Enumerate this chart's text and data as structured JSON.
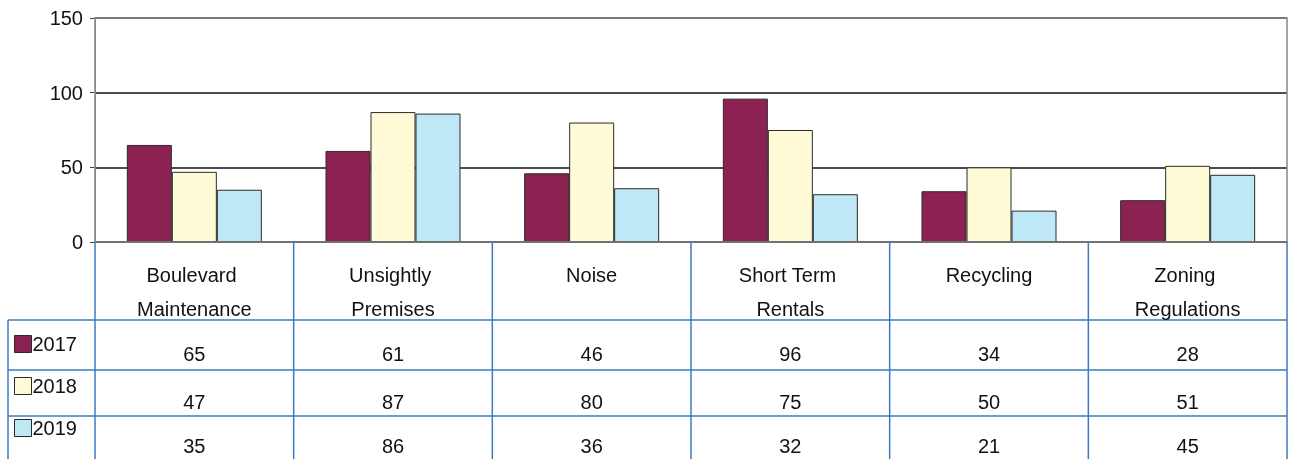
{
  "chart_data": {
    "type": "bar",
    "categories": [
      "Boulevard Maintenance",
      "Unsightly Premises",
      "Noise",
      "Short Term Rentals",
      "Recycling",
      "Zoning Regulations"
    ],
    "series": [
      {
        "name": "2017",
        "color": "#8b2252",
        "values": [
          65,
          61,
          46,
          96,
          34,
          28
        ]
      },
      {
        "name": "2018",
        "color": "#fffbd6",
        "values": [
          47,
          87,
          80,
          75,
          50,
          51
        ]
      },
      {
        "name": "2019",
        "color": "#bfe8f6",
        "values": [
          35,
          86,
          36,
          32,
          21,
          45
        ]
      }
    ],
    "ylim": [
      0,
      150
    ],
    "yticks": [
      0,
      50,
      100,
      150
    ],
    "grid": "y",
    "legend": "bottom left",
    "data_labels": true
  }
}
